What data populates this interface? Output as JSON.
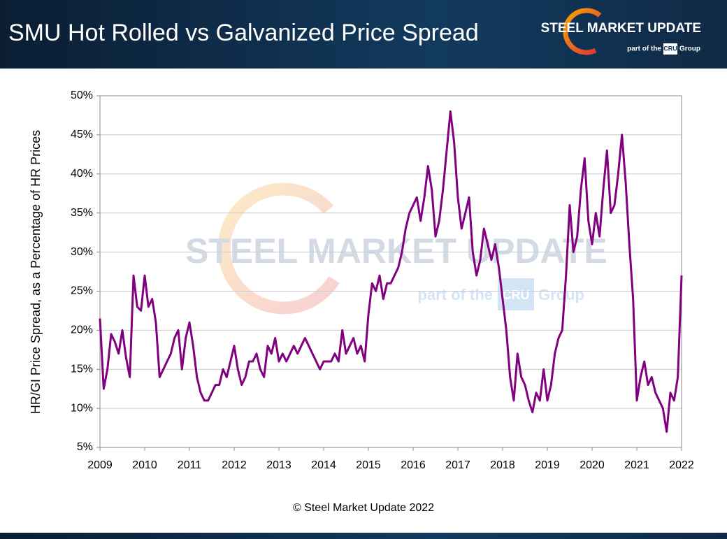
{
  "logo": {
    "name": "STEEL MARKET UPDATE",
    "tagline": "part of the",
    "brand": "CRU",
    "group": "Group"
  },
  "footer": "© Steel Market Update 2022",
  "chart_data": {
    "type": "line",
    "title": "SMU Hot Rolled vs Galvanized Price Spread",
    "y_label": "HR/GI Price Spread, as a Percentage of HR Prices",
    "xlim": [
      2009,
      2022
    ],
    "xticks": [
      2009,
      2010,
      2011,
      2012,
      2013,
      2014,
      2015,
      2016,
      2017,
      2018,
      2019,
      2020,
      2021,
      2022
    ],
    "ylim": [
      5,
      50
    ],
    "yticks": [
      {
        "value": 5,
        "label": "5%"
      },
      {
        "value": 10,
        "label": "10%"
      },
      {
        "value": 15,
        "label": "15%"
      },
      {
        "value": 20,
        "label": "20%"
      },
      {
        "value": 25,
        "label": "25%"
      },
      {
        "value": 30,
        "label": "30%"
      },
      {
        "value": 35,
        "label": "35%"
      },
      {
        "value": 40,
        "label": "40%"
      },
      {
        "value": 45,
        "label": "45%"
      },
      {
        "value": 50,
        "label": "50%"
      }
    ],
    "grid": true,
    "x": [
      2009,
      2009.083,
      2009.167,
      2009.25,
      2009.333,
      2009.417,
      2009.5,
      2009.583,
      2009.667,
      2009.75,
      2009.833,
      2009.917,
      2010,
      2010.083,
      2010.167,
      2010.25,
      2010.333,
      2010.417,
      2010.5,
      2010.583,
      2010.667,
      2010.75,
      2010.833,
      2010.917,
      2011,
      2011.083,
      2011.167,
      2011.25,
      2011.333,
      2011.417,
      2011.5,
      2011.583,
      2011.667,
      2011.75,
      2011.833,
      2011.917,
      2012,
      2012.083,
      2012.167,
      2012.25,
      2012.333,
      2012.417,
      2012.5,
      2012.583,
      2012.667,
      2012.75,
      2012.833,
      2012.917,
      2013,
      2013.083,
      2013.167,
      2013.25,
      2013.333,
      2013.417,
      2013.5,
      2013.583,
      2013.667,
      2013.75,
      2013.833,
      2013.917,
      2014,
      2014.083,
      2014.167,
      2014.25,
      2014.333,
      2014.417,
      2014.5,
      2014.583,
      2014.667,
      2014.75,
      2014.833,
      2014.917,
      2015,
      2015.083,
      2015.167,
      2015.25,
      2015.333,
      2015.417,
      2015.5,
      2015.583,
      2015.667,
      2015.75,
      2015.833,
      2015.917,
      2016,
      2016.083,
      2016.167,
      2016.25,
      2016.333,
      2016.417,
      2016.5,
      2016.583,
      2016.667,
      2016.75,
      2016.833,
      2016.917,
      2017,
      2017.083,
      2017.167,
      2017.25,
      2017.333,
      2017.417,
      2017.5,
      2017.583,
      2017.667,
      2017.75,
      2017.833,
      2017.917,
      2018,
      2018.083,
      2018.167,
      2018.25,
      2018.333,
      2018.417,
      2018.5,
      2018.583,
      2018.667,
      2018.75,
      2018.833,
      2018.917,
      2019,
      2019.083,
      2019.167,
      2019.25,
      2019.333,
      2019.417,
      2019.5,
      2019.583,
      2019.667,
      2019.75,
      2019.833,
      2019.917,
      2020,
      2020.083,
      2020.167,
      2020.25,
      2020.333,
      2020.417,
      2020.5,
      2020.583,
      2020.667,
      2020.75,
      2020.833,
      2020.917,
      2021,
      2021.083,
      2021.167,
      2021.25,
      2021.333,
      2021.417,
      2021.5,
      2021.583,
      2021.667,
      2021.75,
      2021.833,
      2021.917,
      2022
    ],
    "series": [
      {
        "color": "#800080",
        "values": [
          21.5,
          12.5,
          15,
          19.5,
          18.5,
          17,
          20,
          16.5,
          14,
          27,
          23,
          22.5,
          27,
          23,
          24,
          21,
          14,
          15,
          16,
          17,
          19,
          20,
          15,
          19,
          21,
          18,
          14,
          12,
          11,
          11,
          12,
          13,
          13,
          15,
          14,
          16,
          18,
          15,
          13,
          14,
          16,
          16,
          17,
          15,
          14,
          18,
          17,
          19,
          16,
          17,
          16,
          17,
          18,
          17,
          18,
          19,
          18,
          17,
          16,
          15,
          16,
          16,
          16,
          17,
          16,
          20,
          17,
          18,
          19,
          17,
          18,
          16,
          22,
          26,
          25,
          27,
          24,
          26,
          26,
          27,
          28,
          30,
          33,
          35,
          36,
          37,
          34,
          37,
          41,
          38,
          32,
          34,
          38,
          43,
          48,
          44,
          37,
          33,
          35,
          37,
          30,
          27,
          29,
          33,
          31,
          29,
          31,
          28,
          24,
          20,
          14,
          11,
          17,
          14,
          13,
          11,
          9.5,
          12,
          11,
          15,
          11,
          13,
          17,
          19,
          20,
          27,
          36,
          30,
          32,
          38,
          42,
          34,
          31,
          35,
          32,
          38,
          43,
          35,
          36,
          40,
          45,
          39,
          31,
          24,
          11,
          14,
          16,
          13,
          14,
          12,
          11,
          10,
          7,
          12,
          11,
          14,
          27
        ]
      }
    ]
  }
}
